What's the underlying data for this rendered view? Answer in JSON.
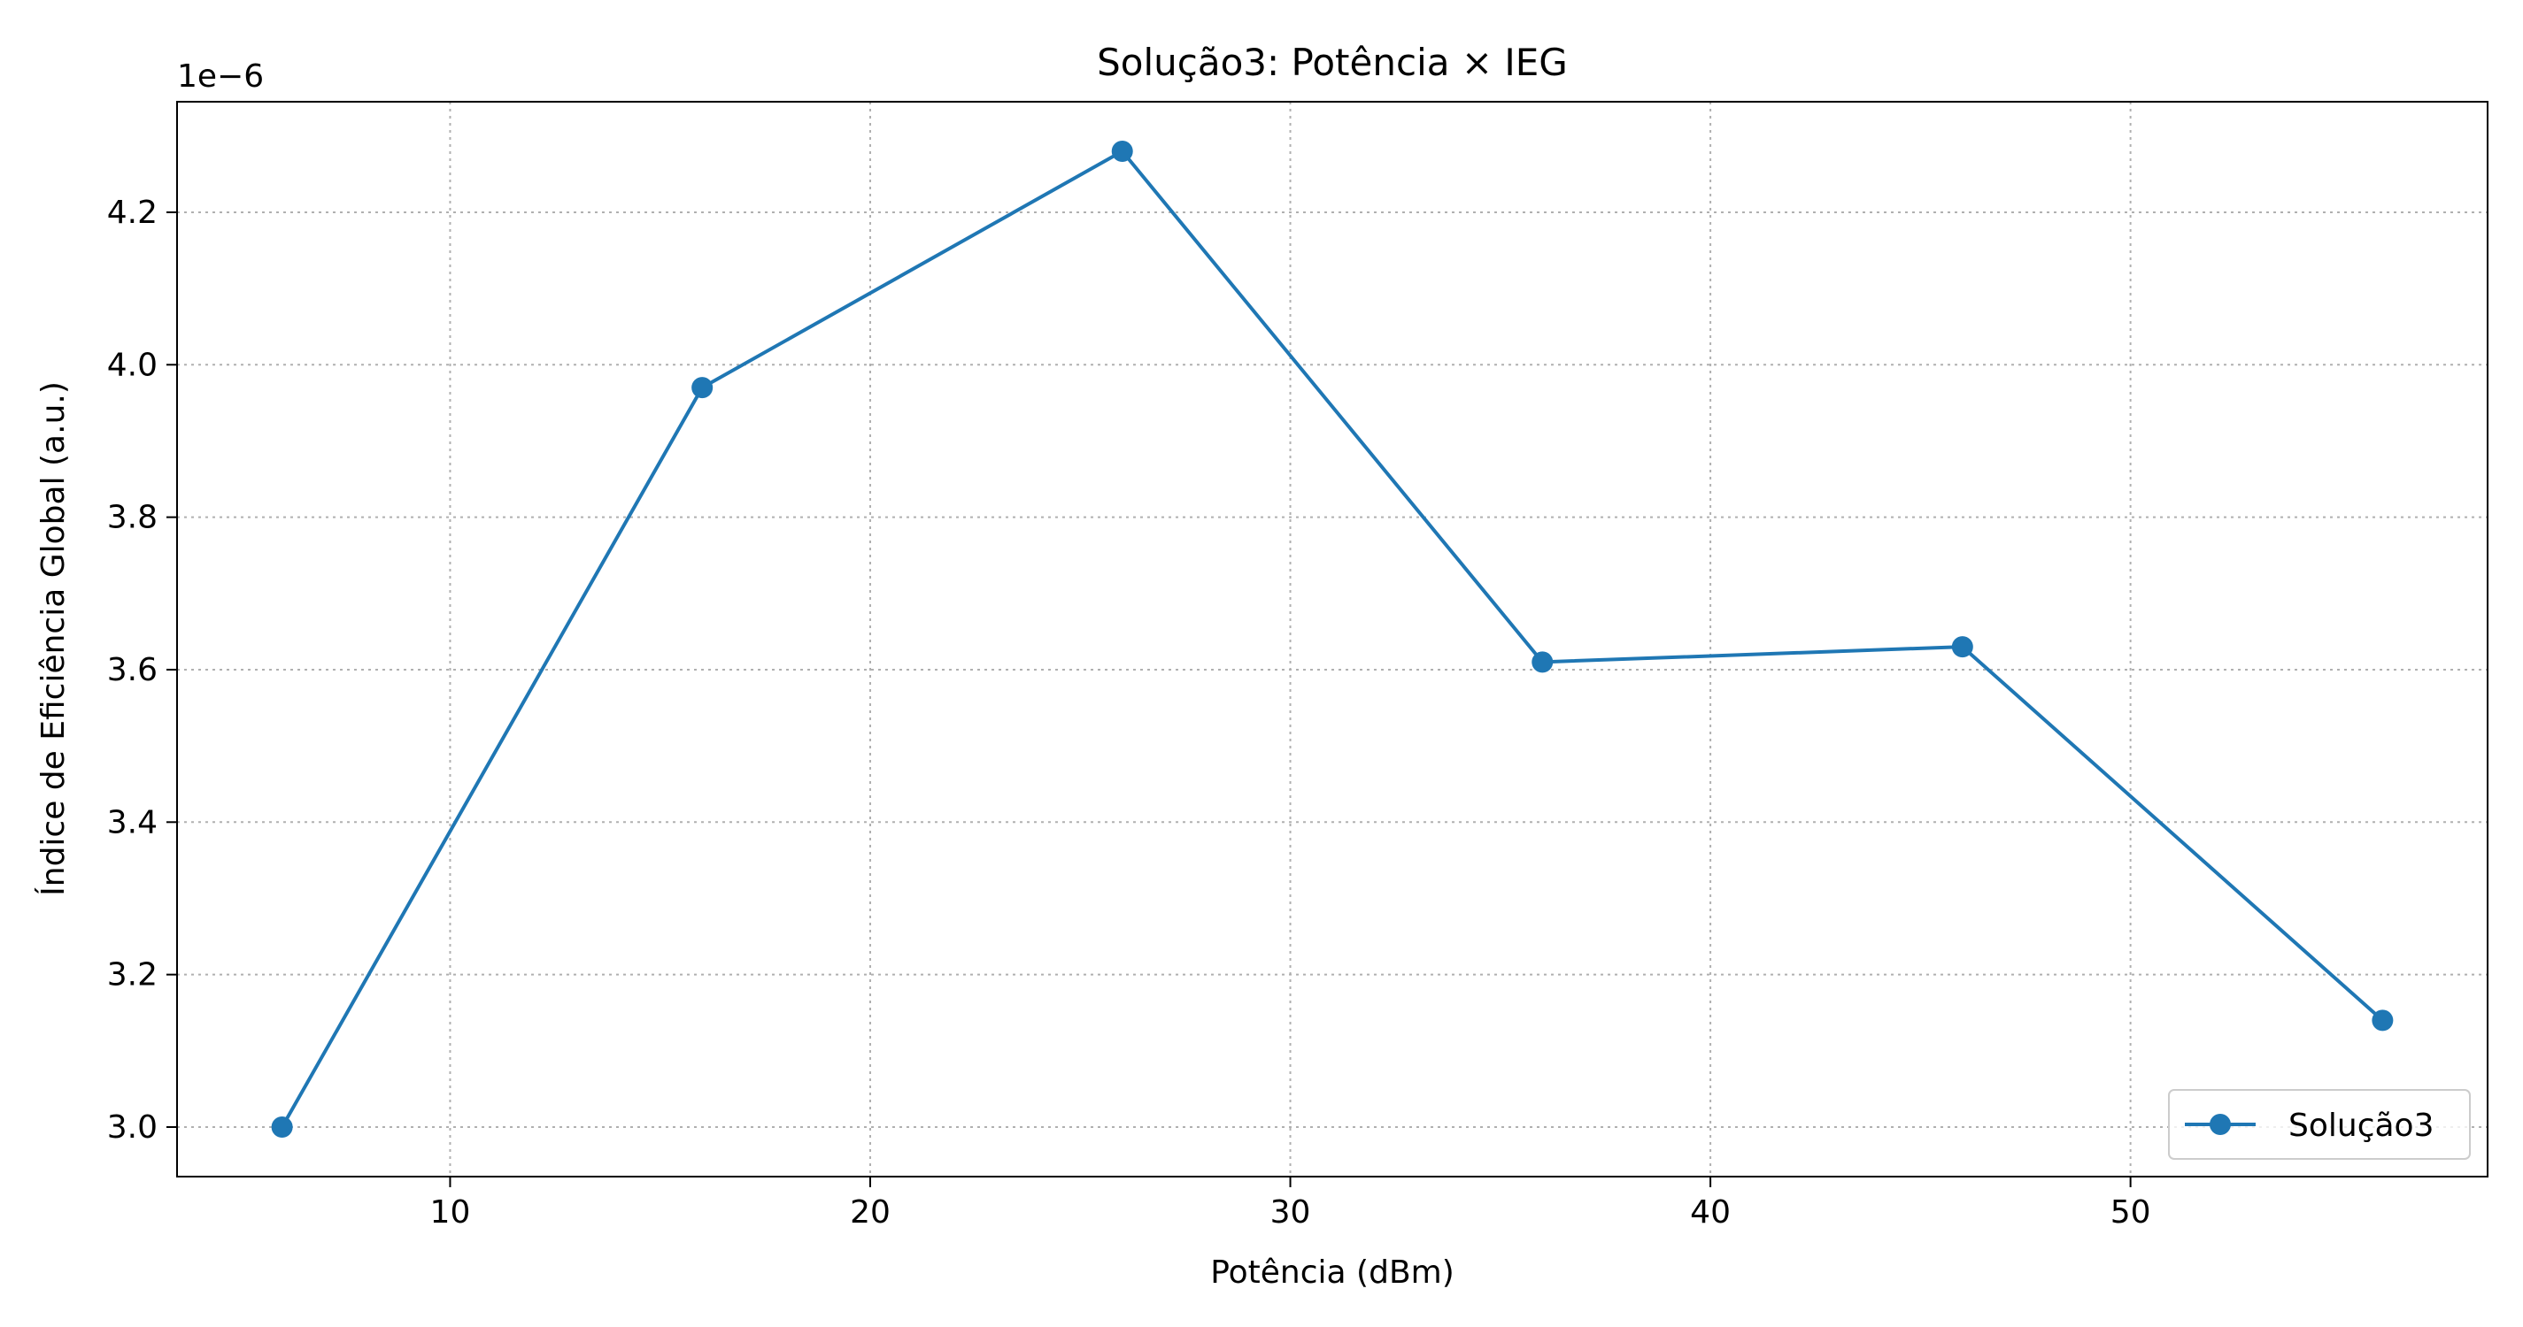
{
  "chart_data": {
    "type": "line",
    "title": "Solução3: Potência × IEG",
    "xlabel": "Potência (dBm)",
    "ylabel": "Índice de Eficiência Global (a.u.)",
    "y_offset_label": "1e−6",
    "xlim": [
      3.5,
      58.5
    ],
    "ylim": [
      2.935,
      4.345
    ],
    "x_ticks": [
      10,
      20,
      30,
      40,
      50
    ],
    "x_tick_labels": [
      "10",
      "20",
      "30",
      "40",
      "50"
    ],
    "y_ticks": [
      3.0,
      3.2,
      3.4,
      3.6,
      3.8,
      4.0,
      4.2
    ],
    "y_tick_labels": [
      "3.0",
      "3.2",
      "3.4",
      "3.6",
      "3.8",
      "4.0",
      "4.2"
    ],
    "grid": true,
    "legend_position": "lower-right",
    "series": [
      {
        "name": "Solução3",
        "color": "#1f77b4",
        "marker": "circle",
        "x": [
          6,
          16,
          26,
          36,
          46,
          56
        ],
        "y": [
          3.0,
          3.97,
          4.28,
          3.61,
          3.63,
          3.14
        ]
      }
    ]
  }
}
